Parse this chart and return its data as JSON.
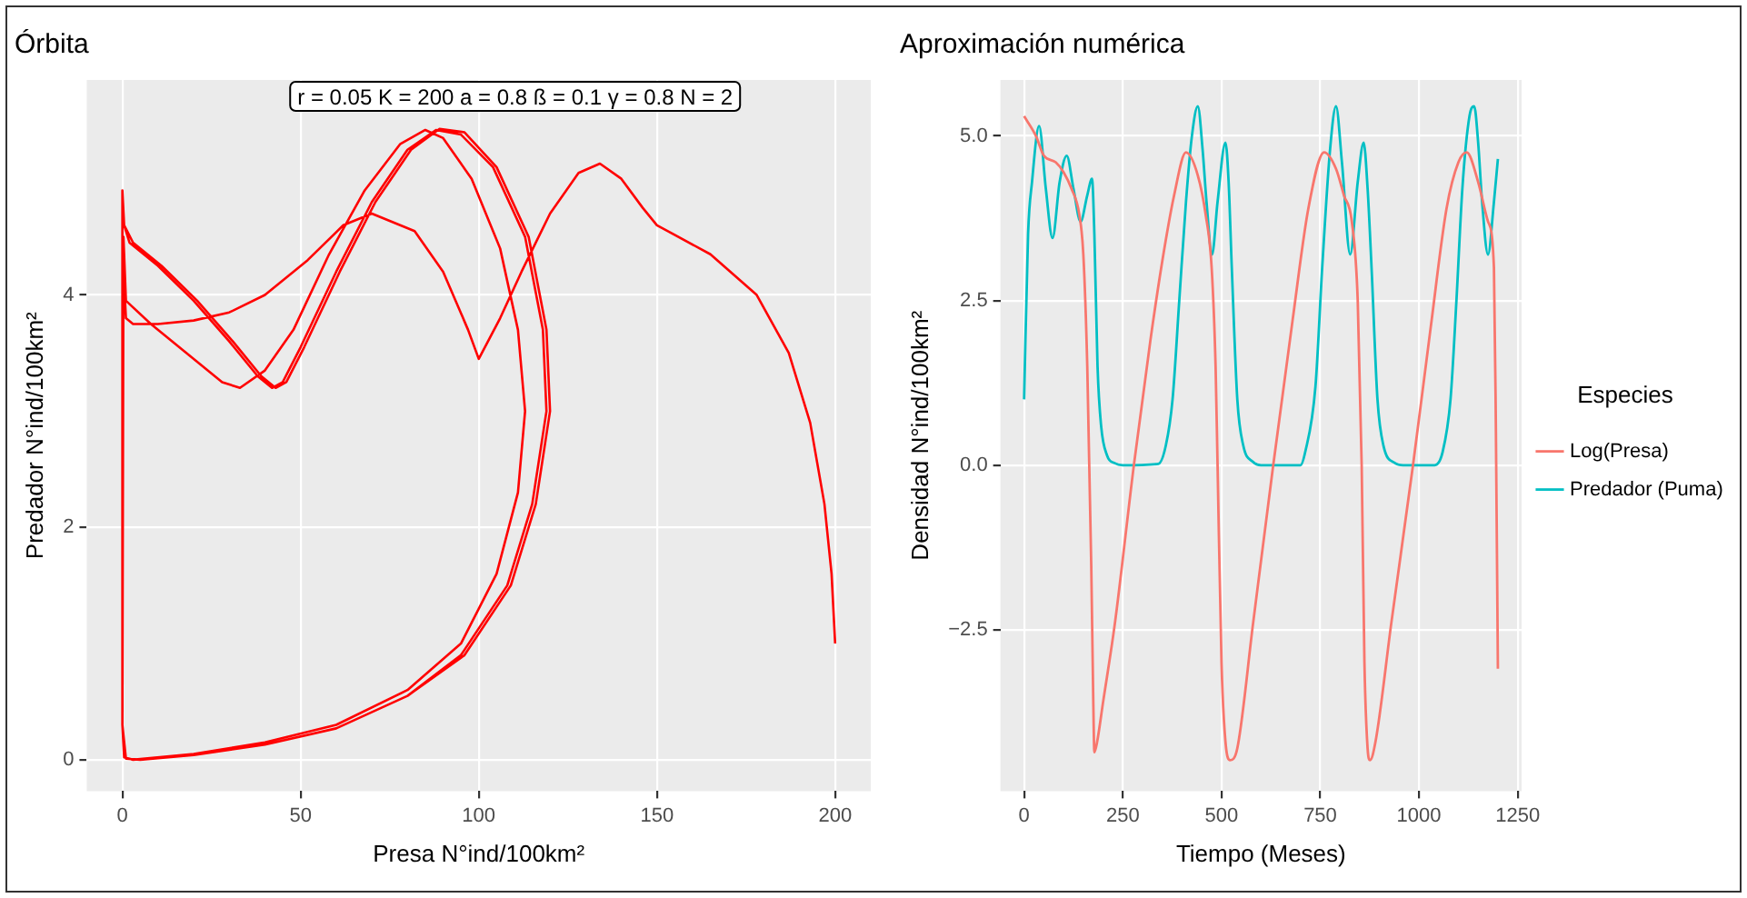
{
  "chart_data": [
    {
      "type": "line",
      "title": "Órbita",
      "xlabel": "Presa N°ind/100km²",
      "ylabel": "Predador N°ind/100km²",
      "annotations": [
        "r = 0.05 K = 200 a = 0.8 ß = 0.1 γ = 0.8 N = 2"
      ],
      "xlim": [
        -10,
        210
      ],
      "ylim": [
        -0.27,
        5.85
      ],
      "xticks": [
        0,
        50,
        100,
        150,
        200
      ],
      "yticks": [
        0,
        2,
        4
      ],
      "grid": true,
      "legend": false,
      "marker": "none",
      "line_style": "solid",
      "series": [
        {
          "color": "#ff0000",
          "x": [
            200,
            199,
            197,
            193,
            187,
            178,
            165,
            150,
            146,
            140,
            134,
            128,
            120,
            112,
            106,
            100,
            97,
            90,
            82,
            70,
            62,
            52,
            40,
            30,
            20,
            10,
            3,
            1,
            0.5,
            0.3,
            0,
            0.5,
            3,
            20,
            40,
            60,
            80,
            95,
            105,
            111,
            113,
            111,
            106,
            98,
            90,
            85,
            78,
            68,
            58,
            48,
            40,
            33,
            28,
            18,
            8,
            1,
            0.3,
            0,
            0,
            1,
            5,
            20,
            40,
            60,
            80,
            95,
            108,
            115,
            119,
            118,
            113,
            104,
            95,
            88,
            80,
            70,
            60,
            50,
            45,
            42,
            38,
            30,
            20,
            10,
            2,
            0.5,
            0,
            0,
            1,
            5,
            20,
            40,
            60,
            80,
            96,
            109,
            116,
            120,
            119,
            114,
            105,
            96,
            89,
            81,
            71,
            61,
            51,
            46,
            43,
            39,
            31,
            21,
            11,
            3,
            0.5,
            0.2
          ],
          "values": [
            1.0,
            1.6,
            2.2,
            2.9,
            3.5,
            4.0,
            4.35,
            4.6,
            4.75,
            5.0,
            5.13,
            5.05,
            4.7,
            4.2,
            3.8,
            3.45,
            3.7,
            4.2,
            4.55,
            4.7,
            4.6,
            4.3,
            4.0,
            3.85,
            3.78,
            3.75,
            3.75,
            3.8,
            4.1,
            4.35,
            0.3,
            0.02,
            0.0,
            0.05,
            0.15,
            0.3,
            0.6,
            1.0,
            1.6,
            2.3,
            3.0,
            3.7,
            4.4,
            5.0,
            5.35,
            5.42,
            5.3,
            4.9,
            4.35,
            3.7,
            3.35,
            3.2,
            3.25,
            3.5,
            3.75,
            3.95,
            4.5,
            4.9,
            0.3,
            0.01,
            0.0,
            0.04,
            0.13,
            0.27,
            0.55,
            0.9,
            1.5,
            2.2,
            3.0,
            3.7,
            4.5,
            5.1,
            5.38,
            5.42,
            5.25,
            4.8,
            4.2,
            3.55,
            3.25,
            3.2,
            3.3,
            3.6,
            3.95,
            4.25,
            4.45,
            4.6,
            4.9,
            0.3,
            0.01,
            0.0,
            0.04,
            0.13,
            0.27,
            0.55,
            0.9,
            1.5,
            2.2,
            3.0,
            3.7,
            4.5,
            5.1,
            5.4,
            5.43,
            5.25,
            4.8,
            4.2,
            3.55,
            3.25,
            3.2,
            3.3,
            3.6,
            3.95,
            4.25,
            4.45,
            4.6,
            4.65
          ]
        }
      ]
    },
    {
      "type": "line",
      "title": "Aproximación numérica",
      "xlabel": "Tiempo (Meses)",
      "ylabel": "Densidad N°ind/100km²",
      "legend_title": "Especies",
      "xlim": [
        -60,
        1260
      ],
      "ylim": [
        -4.95,
        5.85
      ],
      "xticks": [
        0,
        250,
        500,
        750,
        1000,
        1250
      ],
      "yticks": [
        {
          "value": -2.5,
          "label": "−2.5"
        },
        {
          "value": 0,
          "label": "0.0"
        },
        {
          "value": 2.5,
          "label": "2.5"
        },
        {
          "value": 5,
          "label": "5.0"
        }
      ],
      "grid": true,
      "legend": "right",
      "marker": "none",
      "line_style": "solid",
      "series": [
        {
          "name": "Log(Presa)",
          "color": "#f8766d",
          "x": [
            0,
            30,
            50,
            80,
            100,
            120,
            140,
            150,
            160,
            170,
            175,
            178,
            185,
            200,
            230,
            278,
            320,
            350,
            380,
            410,
            440,
            460,
            475,
            485,
            490,
            500,
            510,
            522,
            540,
            580,
            631,
            680,
            720,
            760,
            790,
            810,
            830,
            845,
            855,
            862,
            870,
            876,
            890,
            930,
            985,
            1030,
            1070,
            1100,
            1121,
            1150,
            1175,
            1190,
            1195,
            1200
          ],
          "values": [
            5.3,
            5.0,
            4.7,
            4.6,
            4.45,
            4.2,
            3.8,
            3.2,
            1.5,
            -1.5,
            -3.5,
            -4.36,
            -4.2,
            -3.6,
            -2.4,
            0.0,
            1.9,
            3.1,
            4.1,
            4.75,
            4.4,
            3.8,
            3.0,
            1.5,
            0.0,
            -3.0,
            -4.2,
            -4.48,
            -4.3,
            -2.4,
            0.0,
            2.2,
            3.9,
            4.75,
            4.5,
            4.1,
            3.7,
            2.5,
            0.0,
            -3.0,
            -4.3,
            -4.48,
            -4.2,
            -2.4,
            0.0,
            2.1,
            3.9,
            4.6,
            4.75,
            4.3,
            3.7,
            3.0,
            0.5,
            -3.09
          ]
        },
        {
          "name": "Predador (Puma)",
          "color": "#00bfc4",
          "x": [
            0,
            10,
            20,
            38,
            55,
            72,
            90,
            108,
            125,
            143,
            160,
            172,
            178,
            186,
            195,
            210,
            230,
            250,
            340,
            359,
            376,
            393,
            410,
            425,
            440,
            452,
            462,
            476,
            490,
            510,
            518,
            526,
            540,
            555,
            580,
            600,
            700,
            712,
            738,
            755,
            775,
            790,
            805,
            826,
            845,
            860,
            870,
            880,
            895,
            910,
            940,
            960,
            1040,
            1060,
            1080,
            1095,
            1110,
            1128,
            1140,
            1150,
            1160,
            1175,
            1190,
            1200
          ],
          "values": [
            1.0,
            3.5,
            4.3,
            5.15,
            4.2,
            3.45,
            4.3,
            4.7,
            4.2,
            3.7,
            4.1,
            4.35,
            3.5,
            1.5,
            0.6,
            0.15,
            0.03,
            0.0,
            0.02,
            0.3,
            1.0,
            2.5,
            4.0,
            5.0,
            5.45,
            4.8,
            4.0,
            3.2,
            4.0,
            4.9,
            4.3,
            3.0,
            1.0,
            0.3,
            0.05,
            0.0,
            0.0,
            0.2,
            1.2,
            3.0,
            4.8,
            5.45,
            4.6,
            3.2,
            4.3,
            4.9,
            4.2,
            3.0,
            1.0,
            0.3,
            0.03,
            0.0,
            0.0,
            0.2,
            1.0,
            2.5,
            4.2,
            5.3,
            5.45,
            4.9,
            4.0,
            3.2,
            4.0,
            4.65
          ]
        }
      ]
    }
  ]
}
